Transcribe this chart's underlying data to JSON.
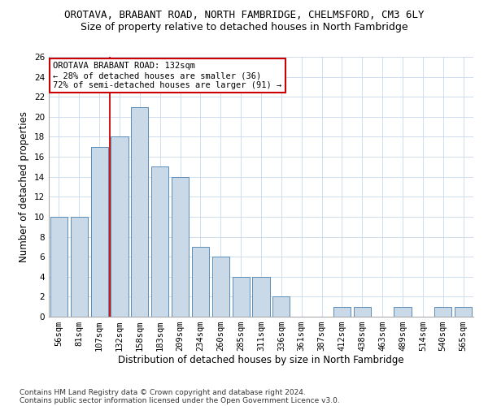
{
  "title": "OROTAVA, BRABANT ROAD, NORTH FAMBRIDGE, CHELMSFORD, CM3 6LY",
  "subtitle": "Size of property relative to detached houses in North Fambridge",
  "xlabel": "Distribution of detached houses by size in North Fambridge",
  "ylabel": "Number of detached properties",
  "categories": [
    "56sqm",
    "81sqm",
    "107sqm",
    "132sqm",
    "158sqm",
    "183sqm",
    "209sqm",
    "234sqm",
    "260sqm",
    "285sqm",
    "311sqm",
    "336sqm",
    "361sqm",
    "387sqm",
    "412sqm",
    "438sqm",
    "463sqm",
    "489sqm",
    "514sqm",
    "540sqm",
    "565sqm"
  ],
  "values": [
    10,
    10,
    17,
    18,
    21,
    15,
    14,
    7,
    6,
    4,
    4,
    2,
    0,
    0,
    1,
    1,
    0,
    1,
    0,
    1,
    1
  ],
  "bar_color": "#c9d9e8",
  "bar_edge_color": "#5b8db8",
  "vline_index": 3,
  "vline_color": "#cc0000",
  "ylim": [
    0,
    26
  ],
  "yticks": [
    0,
    2,
    4,
    6,
    8,
    10,
    12,
    14,
    16,
    18,
    20,
    22,
    24,
    26
  ],
  "annotation_title": "OROTAVA BRABANT ROAD: 132sqm",
  "annotation_line1": "← 28% of detached houses are smaller (36)",
  "annotation_line2": "72% of semi-detached houses are larger (91) →",
  "annotation_box_color": "#ffffff",
  "annotation_box_edge": "#cc0000",
  "footer1": "Contains HM Land Registry data © Crown copyright and database right 2024.",
  "footer2": "Contains public sector information licensed under the Open Government Licence v3.0.",
  "title_fontsize": 9,
  "subtitle_fontsize": 9,
  "axis_label_fontsize": 8.5,
  "tick_fontsize": 7.5,
  "annotation_fontsize": 7.5,
  "footer_fontsize": 6.5,
  "background_color": "#ffffff",
  "grid_color": "#c8d8ea"
}
